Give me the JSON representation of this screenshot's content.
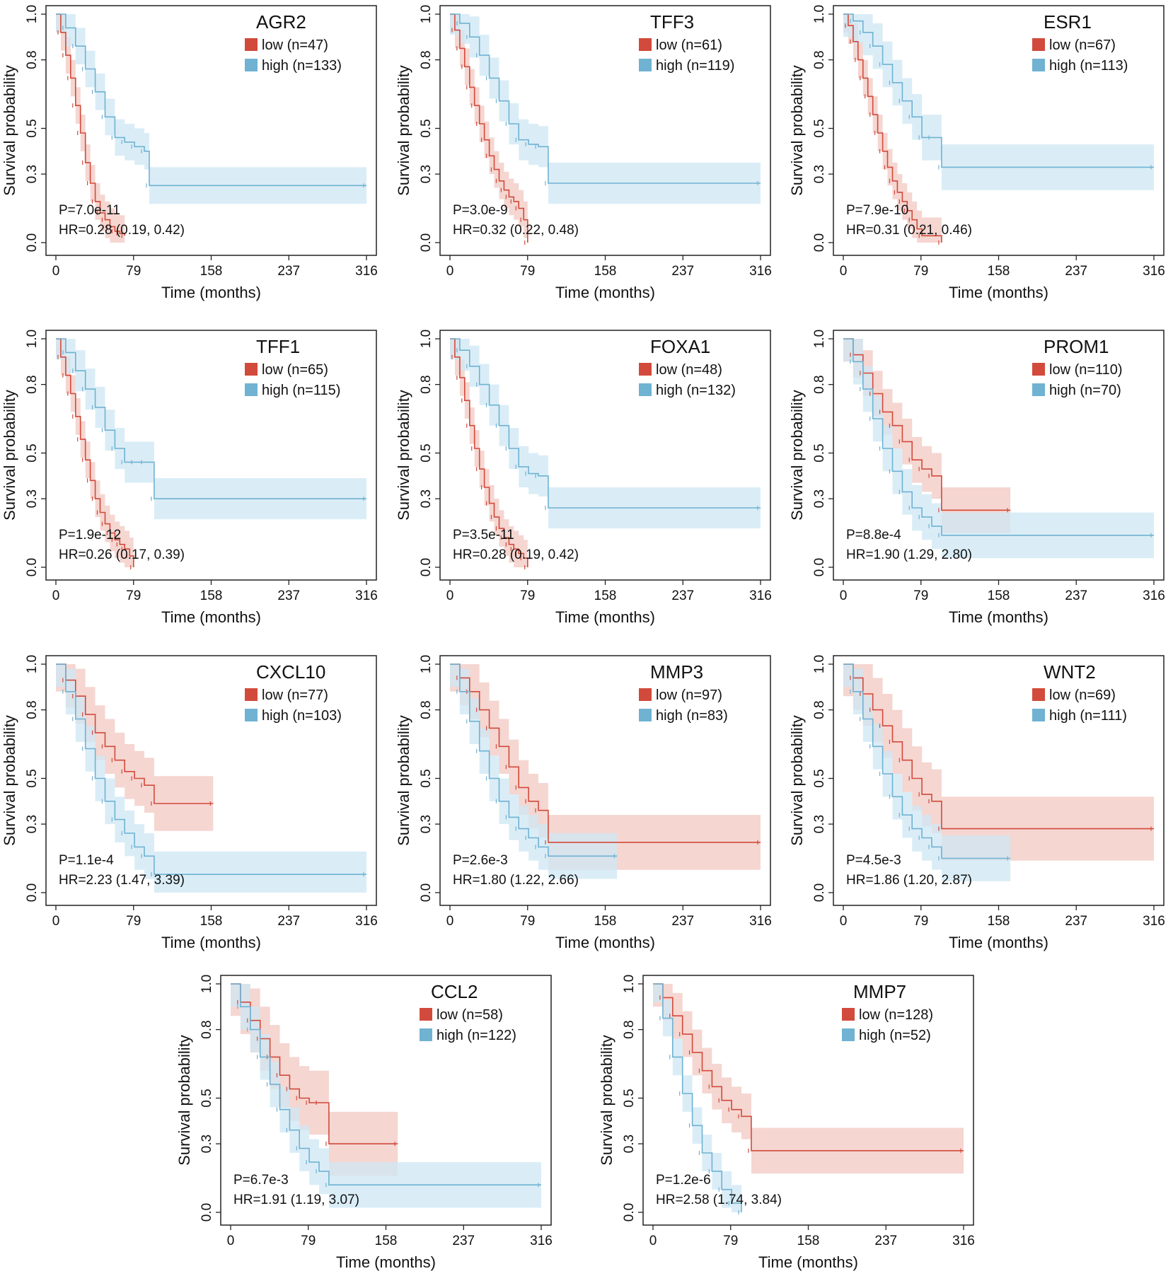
{
  "colors": {
    "low": "#d24a3b",
    "high": "#6fb2d2",
    "low_band": "#f2c8c1",
    "high_band": "#cde7f4"
  },
  "chart_data": [
    {
      "type": "line",
      "gene": "AGR2",
      "legend": {
        "low": "low (n=47)",
        "high": "high (n=133)"
      },
      "p_value": "P=7.0e-11",
      "hr": "HR=0.28 (0.19, 0.42)",
      "xlabel": "Time (months)",
      "ylabel": "Survival probability",
      "xticks": [
        "0",
        "79",
        "158",
        "237",
        "316"
      ],
      "yticks": [
        "0.0",
        "0.3",
        "0.5",
        "0.8",
        "1.0"
      ],
      "xlim": [
        0,
        316
      ],
      "ylim": [
        0,
        1
      ],
      "series": [
        {
          "name": "low",
          "x": [
            0,
            5,
            10,
            15,
            20,
            25,
            30,
            35,
            40,
            45,
            50,
            55,
            60,
            65,
            70
          ],
          "y": [
            1.0,
            0.92,
            0.82,
            0.72,
            0.6,
            0.48,
            0.35,
            0.26,
            0.18,
            0.13,
            0.1,
            0.07,
            0.05,
            0.04,
            0.03
          ],
          "band": 0.08
        },
        {
          "name": "high",
          "x": [
            0,
            10,
            20,
            30,
            40,
            50,
            60,
            70,
            80,
            90,
            95,
            316
          ],
          "y": [
            1.0,
            0.94,
            0.86,
            0.76,
            0.66,
            0.55,
            0.46,
            0.44,
            0.42,
            0.4,
            0.25,
            0.25
          ],
          "band": 0.08
        }
      ]
    },
    {
      "type": "line",
      "gene": "TFF3",
      "legend": {
        "low": "low (n=61)",
        "high": "high (n=119)"
      },
      "p_value": "P=3.0e-9",
      "hr": "HR=0.32 (0.22, 0.48)",
      "xlabel": "Time (months)",
      "ylabel": "Survival probability",
      "xticks": [
        "0",
        "79",
        "158",
        "237",
        "316"
      ],
      "yticks": [
        "0.0",
        "0.3",
        "0.5",
        "0.8",
        "1.0"
      ],
      "xlim": [
        0,
        316
      ],
      "ylim": [
        0,
        1
      ],
      "series": [
        {
          "name": "low",
          "x": [
            0,
            5,
            10,
            15,
            20,
            25,
            30,
            35,
            40,
            45,
            50,
            55,
            60,
            65,
            70,
            75,
            79
          ],
          "y": [
            1.0,
            0.93,
            0.85,
            0.77,
            0.68,
            0.6,
            0.52,
            0.45,
            0.38,
            0.32,
            0.27,
            0.23,
            0.2,
            0.18,
            0.15,
            0.1,
            0.0
          ],
          "band": 0.08
        },
        {
          "name": "high",
          "x": [
            0,
            10,
            20,
            30,
            40,
            50,
            60,
            70,
            80,
            90,
            100,
            316
          ],
          "y": [
            1.0,
            0.96,
            0.9,
            0.82,
            0.72,
            0.62,
            0.52,
            0.45,
            0.43,
            0.42,
            0.26,
            0.26
          ],
          "band": 0.09
        }
      ]
    },
    {
      "type": "line",
      "gene": "ESR1",
      "legend": {
        "low": "low (n=67)",
        "high": "high (n=113)"
      },
      "p_value": "P=7.9e-10",
      "hr": "HR=0.31 (0.21, 0.46)",
      "xlabel": "Time (months)",
      "ylabel": "Survival probability",
      "xticks": [
        "0",
        "79",
        "158",
        "237",
        "316"
      ],
      "yticks": [
        "0.0",
        "0.3",
        "0.5",
        "0.8",
        "1.0"
      ],
      "xlim": [
        0,
        316
      ],
      "ylim": [
        0,
        1
      ],
      "series": [
        {
          "name": "low",
          "x": [
            0,
            5,
            10,
            15,
            20,
            25,
            30,
            35,
            40,
            45,
            50,
            55,
            60,
            65,
            70,
            75,
            80,
            100
          ],
          "y": [
            1.0,
            0.95,
            0.88,
            0.8,
            0.72,
            0.64,
            0.56,
            0.48,
            0.4,
            0.33,
            0.27,
            0.22,
            0.18,
            0.14,
            0.1,
            0.06,
            0.03,
            0.0
          ],
          "band": 0.08
        },
        {
          "name": "high",
          "x": [
            0,
            10,
            20,
            30,
            40,
            50,
            60,
            70,
            80,
            90,
            100,
            316
          ],
          "y": [
            1.0,
            0.97,
            0.92,
            0.86,
            0.78,
            0.7,
            0.62,
            0.55,
            0.46,
            0.46,
            0.33,
            0.33
          ],
          "band": 0.1
        }
      ]
    },
    {
      "type": "line",
      "gene": "TFF1",
      "legend": {
        "low": "low (n=65)",
        "high": "high (n=115)"
      },
      "p_value": "P=1.9e-12",
      "hr": "HR=0.26 (0.17, 0.39)",
      "xlabel": "Time (months)",
      "ylabel": "Survival probability",
      "xticks": [
        "0",
        "79",
        "158",
        "237",
        "316"
      ],
      "yticks": [
        "0.0",
        "0.3",
        "0.5",
        "0.8",
        "1.0"
      ],
      "xlim": [
        0,
        316
      ],
      "ylim": [
        0,
        1
      ],
      "series": [
        {
          "name": "low",
          "x": [
            0,
            5,
            10,
            15,
            20,
            25,
            30,
            35,
            40,
            45,
            50,
            55,
            60,
            65,
            70,
            75,
            79
          ],
          "y": [
            1.0,
            0.92,
            0.84,
            0.76,
            0.66,
            0.56,
            0.47,
            0.38,
            0.3,
            0.24,
            0.19,
            0.15,
            0.12,
            0.1,
            0.08,
            0.05,
            0.0
          ],
          "band": 0.08
        },
        {
          "name": "high",
          "x": [
            0,
            10,
            20,
            30,
            40,
            50,
            60,
            70,
            80,
            90,
            100,
            316
          ],
          "y": [
            1.0,
            0.94,
            0.86,
            0.78,
            0.7,
            0.6,
            0.52,
            0.46,
            0.46,
            0.46,
            0.3,
            0.3
          ],
          "band": 0.09
        }
      ]
    },
    {
      "type": "line",
      "gene": "FOXA1",
      "legend": {
        "low": "low (n=48)",
        "high": "high (n=132)"
      },
      "p_value": "P=3.5e-11",
      "hr": "HR=0.28 (0.19, 0.42)",
      "xlabel": "Time (months)",
      "ylabel": "Survival probability",
      "xticks": [
        "0",
        "79",
        "158",
        "237",
        "316"
      ],
      "yticks": [
        "0.0",
        "0.3",
        "0.5",
        "0.8",
        "1.0"
      ],
      "xlim": [
        0,
        316
      ],
      "ylim": [
        0,
        1
      ],
      "series": [
        {
          "name": "low",
          "x": [
            0,
            5,
            10,
            15,
            20,
            25,
            30,
            35,
            40,
            45,
            50,
            55,
            60,
            65,
            70,
            75,
            79
          ],
          "y": [
            1.0,
            0.92,
            0.83,
            0.73,
            0.62,
            0.52,
            0.43,
            0.35,
            0.28,
            0.22,
            0.17,
            0.13,
            0.1,
            0.08,
            0.06,
            0.04,
            0.0
          ],
          "band": 0.08
        },
        {
          "name": "high",
          "x": [
            0,
            10,
            20,
            30,
            40,
            50,
            60,
            70,
            80,
            90,
            100,
            316
          ],
          "y": [
            1.0,
            0.95,
            0.88,
            0.8,
            0.71,
            0.62,
            0.52,
            0.44,
            0.41,
            0.4,
            0.26,
            0.26
          ],
          "band": 0.09
        }
      ]
    },
    {
      "type": "line",
      "gene": "PROM1",
      "legend": {
        "low": "low (n=110)",
        "high": "high (n=70)"
      },
      "p_value": "P=8.8e-4",
      "hr": "HR=1.90 (1.29, 2.80)",
      "xlabel": "Time (months)",
      "ylabel": "Survival probability",
      "xticks": [
        "0",
        "79",
        "158",
        "237",
        "316"
      ],
      "yticks": [
        "0.0",
        "0.3",
        "0.5",
        "0.8",
        "1.0"
      ],
      "xlim": [
        0,
        316
      ],
      "ylim": [
        0,
        1
      ],
      "series": [
        {
          "name": "low",
          "x": [
            0,
            10,
            20,
            30,
            40,
            50,
            60,
            70,
            80,
            90,
            100,
            170
          ],
          "y": [
            1.0,
            0.93,
            0.85,
            0.76,
            0.68,
            0.62,
            0.55,
            0.47,
            0.43,
            0.4,
            0.25,
            0.25
          ],
          "band": 0.1
        },
        {
          "name": "high",
          "x": [
            0,
            10,
            20,
            30,
            40,
            50,
            60,
            70,
            80,
            90,
            100,
            316
          ],
          "y": [
            1.0,
            0.9,
            0.78,
            0.65,
            0.52,
            0.42,
            0.33,
            0.26,
            0.22,
            0.18,
            0.14,
            0.14
          ],
          "band": 0.1
        }
      ]
    },
    {
      "type": "line",
      "gene": "CXCL10",
      "legend": {
        "low": "low (n=77)",
        "high": "high (n=103)"
      },
      "p_value": "P=1.1e-4",
      "hr": "HR=2.23 (1.47, 3.39)",
      "xlabel": "Time (months)",
      "ylabel": "Survival probability",
      "xticks": [
        "0",
        "79",
        "158",
        "237",
        "316"
      ],
      "yticks": [
        "0.0",
        "0.3",
        "0.5",
        "0.8",
        "1.0"
      ],
      "xlim": [
        0,
        316
      ],
      "ylim": [
        0,
        1
      ],
      "series": [
        {
          "name": "low",
          "x": [
            0,
            10,
            20,
            30,
            40,
            50,
            60,
            70,
            80,
            90,
            100,
            160
          ],
          "y": [
            1.0,
            0.93,
            0.86,
            0.78,
            0.7,
            0.64,
            0.58,
            0.53,
            0.5,
            0.47,
            0.39,
            0.39
          ],
          "band": 0.12
        },
        {
          "name": "high",
          "x": [
            0,
            10,
            20,
            30,
            40,
            50,
            60,
            70,
            80,
            90,
            100,
            316
          ],
          "y": [
            1.0,
            0.88,
            0.76,
            0.63,
            0.5,
            0.4,
            0.32,
            0.26,
            0.2,
            0.16,
            0.08,
            0.08
          ],
          "band": 0.1
        }
      ]
    },
    {
      "type": "line",
      "gene": "MMP3",
      "legend": {
        "low": "low (n=97)",
        "high": "high (n=83)"
      },
      "p_value": "P=2.6e-3",
      "hr": "HR=1.80 (1.22, 2.66)",
      "xlabel": "Time (months)",
      "ylabel": "Survival probability",
      "xticks": [
        "0",
        "79",
        "158",
        "237",
        "316"
      ],
      "yticks": [
        "0.0",
        "0.3",
        "0.5",
        "0.8",
        "1.0"
      ],
      "xlim": [
        0,
        316
      ],
      "ylim": [
        0,
        1
      ],
      "series": [
        {
          "name": "low",
          "x": [
            0,
            10,
            20,
            30,
            40,
            50,
            60,
            70,
            80,
            90,
            100,
            316
          ],
          "y": [
            1.0,
            0.94,
            0.88,
            0.8,
            0.72,
            0.64,
            0.55,
            0.46,
            0.4,
            0.36,
            0.22,
            0.22
          ],
          "band": 0.12
        },
        {
          "name": "high",
          "x": [
            0,
            10,
            20,
            30,
            40,
            50,
            60,
            70,
            80,
            90,
            100,
            170
          ],
          "y": [
            1.0,
            0.88,
            0.75,
            0.62,
            0.5,
            0.4,
            0.33,
            0.28,
            0.24,
            0.2,
            0.16,
            0.16
          ],
          "band": 0.1
        }
      ]
    },
    {
      "type": "line",
      "gene": "WNT2",
      "legend": {
        "low": "low (n=69)",
        "high": "high (n=111)"
      },
      "p_value": "P=4.5e-3",
      "hr": "HR=1.86 (1.20, 2.87)",
      "xlabel": "Time (months)",
      "ylabel": "Survival probability",
      "xticks": [
        "0",
        "79",
        "158",
        "237",
        "316"
      ],
      "yticks": [
        "0.0",
        "0.3",
        "0.5",
        "0.8",
        "1.0"
      ],
      "xlim": [
        0,
        316
      ],
      "ylim": [
        0,
        1
      ],
      "series": [
        {
          "name": "low",
          "x": [
            0,
            10,
            20,
            30,
            40,
            50,
            60,
            70,
            80,
            90,
            100,
            316
          ],
          "y": [
            1.0,
            0.94,
            0.87,
            0.8,
            0.73,
            0.66,
            0.58,
            0.5,
            0.43,
            0.4,
            0.28,
            0.28
          ],
          "band": 0.14
        },
        {
          "name": "high",
          "x": [
            0,
            10,
            20,
            30,
            40,
            50,
            60,
            70,
            80,
            90,
            100,
            170
          ],
          "y": [
            1.0,
            0.88,
            0.76,
            0.64,
            0.52,
            0.42,
            0.34,
            0.28,
            0.24,
            0.2,
            0.15,
            0.15
          ],
          "band": 0.1
        }
      ]
    },
    {
      "type": "line",
      "gene": "CCL2",
      "legend": {
        "low": "low (n=58)",
        "high": "high (n=122)"
      },
      "p_value": "P=6.7e-3",
      "hr": "HR=1.91 (1.19, 3.07)",
      "xlabel": "Time (months)",
      "ylabel": "Survival probability",
      "xticks": [
        "0",
        "79",
        "158",
        "237",
        "316"
      ],
      "yticks": [
        "0.0",
        "0.3",
        "0.5",
        "0.8",
        "1.0"
      ],
      "xlim": [
        0,
        316
      ],
      "ylim": [
        0,
        1
      ],
      "series": [
        {
          "name": "low",
          "x": [
            0,
            10,
            20,
            30,
            40,
            50,
            60,
            70,
            80,
            90,
            100,
            170
          ],
          "y": [
            1.0,
            0.92,
            0.84,
            0.76,
            0.68,
            0.6,
            0.54,
            0.5,
            0.48,
            0.48,
            0.3,
            0.3
          ],
          "band": 0.14
        },
        {
          "name": "high",
          "x": [
            0,
            10,
            20,
            30,
            40,
            50,
            60,
            70,
            80,
            90,
            100,
            316
          ],
          "y": [
            1.0,
            0.9,
            0.8,
            0.68,
            0.56,
            0.45,
            0.36,
            0.28,
            0.22,
            0.18,
            0.12,
            0.12
          ],
          "band": 0.1
        }
      ]
    },
    {
      "type": "line",
      "gene": "MMP7",
      "legend": {
        "low": "low (n=128)",
        "high": "high (n=52)"
      },
      "p_value": "P=1.2e-6",
      "hr": "HR=2.58 (1.74, 3.84)",
      "xlabel": "Time (months)",
      "ylabel": "Survival probability",
      "xticks": [
        "0",
        "79",
        "158",
        "237",
        "316"
      ],
      "yticks": [
        "0.0",
        "0.3",
        "0.5",
        "0.8",
        "1.0"
      ],
      "xlim": [
        0,
        316
      ],
      "ylim": [
        0,
        1
      ],
      "series": [
        {
          "name": "low",
          "x": [
            0,
            10,
            20,
            30,
            40,
            50,
            60,
            70,
            80,
            90,
            100,
            316
          ],
          "y": [
            1.0,
            0.94,
            0.86,
            0.78,
            0.7,
            0.62,
            0.55,
            0.49,
            0.45,
            0.42,
            0.27,
            0.27
          ],
          "band": 0.1
        },
        {
          "name": "high",
          "x": [
            0,
            10,
            20,
            30,
            40,
            50,
            60,
            70,
            80,
            90
          ],
          "y": [
            1.0,
            0.85,
            0.68,
            0.52,
            0.38,
            0.26,
            0.18,
            0.1,
            0.04,
            0.0
          ],
          "band": 0.08
        }
      ]
    }
  ]
}
